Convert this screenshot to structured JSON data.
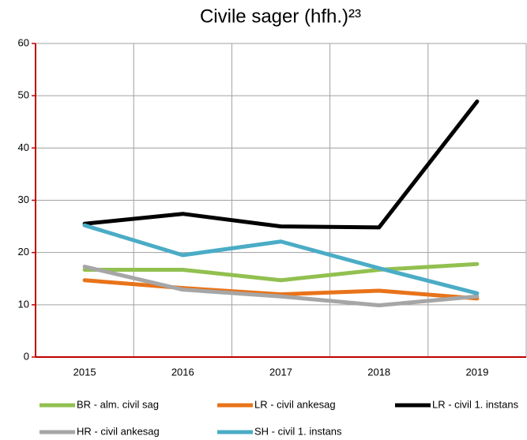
{
  "chart_data": {
    "type": "line",
    "title": "Civile sager (hfh.)²³",
    "categories": [
      "2015",
      "2016",
      "2017",
      "2018",
      "2019"
    ],
    "series": [
      {
        "name": "BR - alm. civil sag",
        "color": "#92c050",
        "values": [
          16.7,
          16.7,
          14.7,
          16.7,
          17.8
        ]
      },
      {
        "name": "LR - civil ankesag",
        "color": "#e8731a",
        "values": [
          14.7,
          13.2,
          12.0,
          12.7,
          11.2
        ]
      },
      {
        "name": "LR - civil 1. instans",
        "color": "#000000",
        "values": [
          25.5,
          27.4,
          25.0,
          24.8,
          48.9
        ]
      },
      {
        "name": "HR - civil ankesag",
        "color": "#a6a6a6",
        "values": [
          17.3,
          12.9,
          11.6,
          9.9,
          11.6
        ]
      },
      {
        "name": "SH - civil 1. instans",
        "color": "#4bacc6",
        "values": [
          25.2,
          19.5,
          22.1,
          17.0,
          12.2
        ]
      }
    ],
    "ylim": [
      0,
      60
    ],
    "yticks": [
      0,
      10,
      20,
      30,
      40,
      50,
      60
    ],
    "grid": true,
    "legend": "bottom"
  }
}
